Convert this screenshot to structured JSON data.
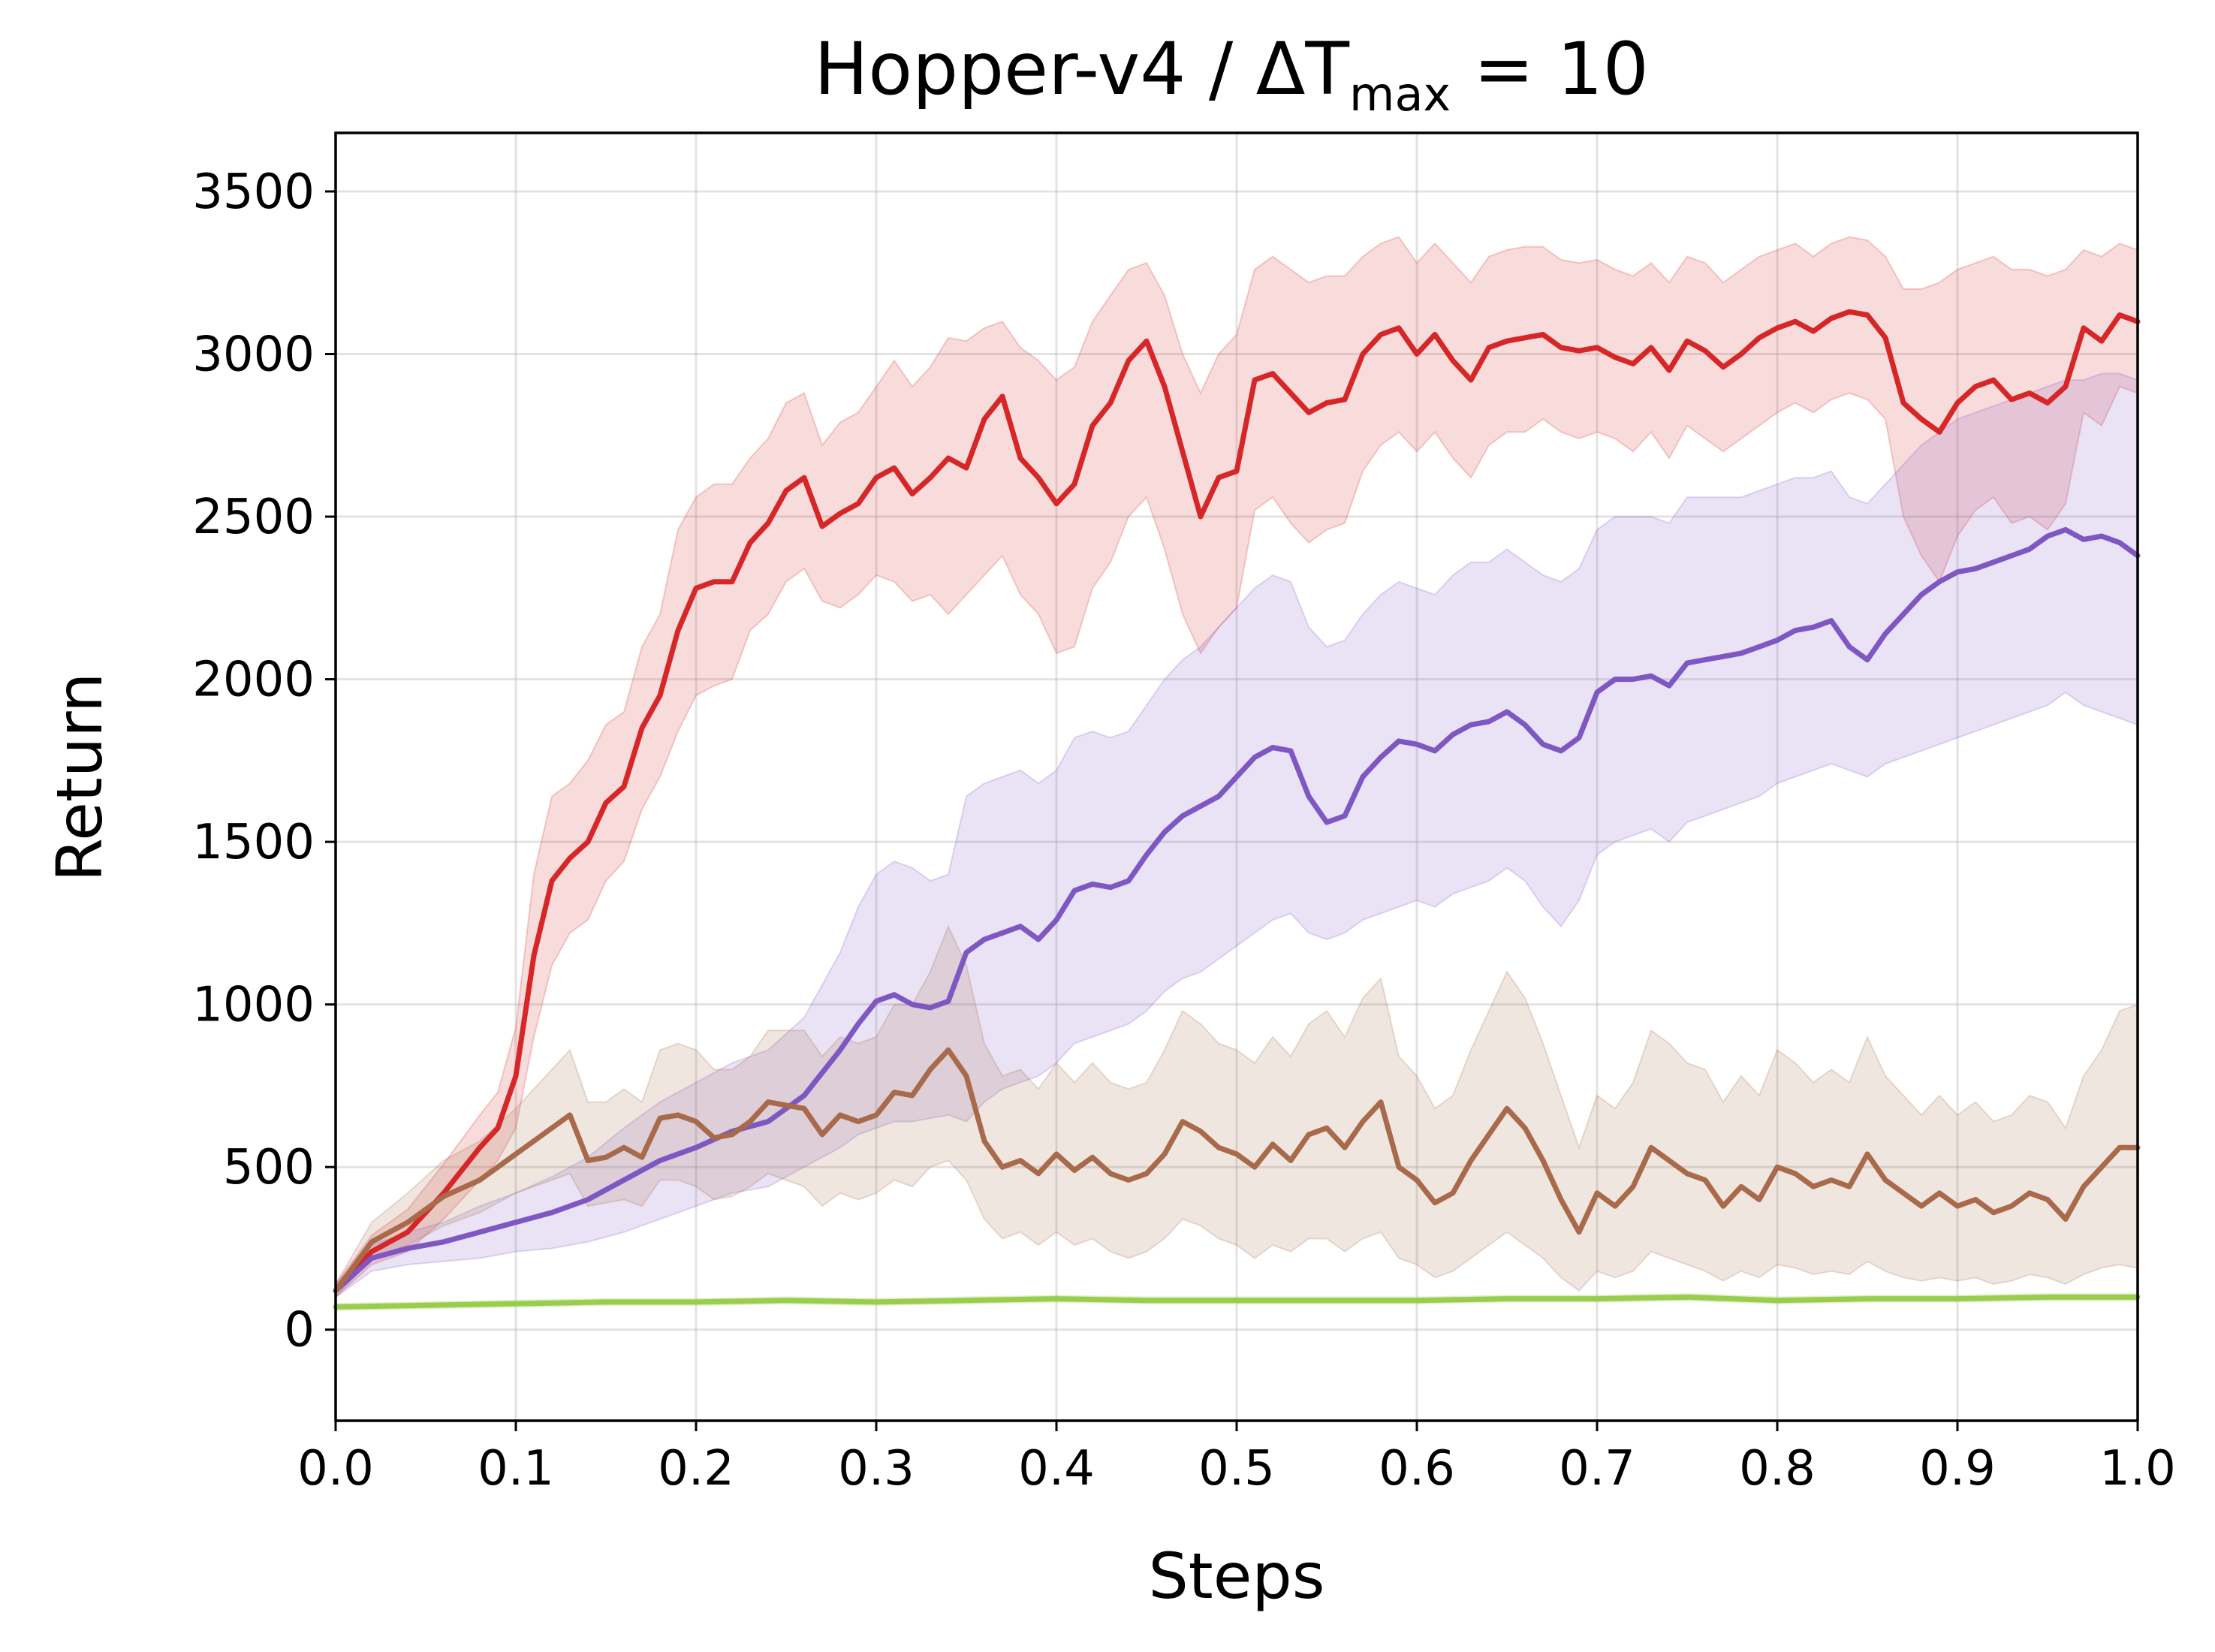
{
  "chart_data": {
    "type": "line",
    "title": "Hopper-v4 / ΔT",
    "title_subscript": "max",
    "title_suffix": " = 10",
    "xlabel": "Steps",
    "ylabel": "Return",
    "xlim": [
      0.0,
      1.0
    ],
    "ylim": [
      -280,
      3680
    ],
    "xticks": [
      "0.0",
      "0.1",
      "0.2",
      "0.3",
      "0.4",
      "0.5",
      "0.6",
      "0.7",
      "0.8",
      "0.9",
      "1.0"
    ],
    "yticks": [
      "0",
      "500",
      "1000",
      "1500",
      "2000",
      "2500",
      "3000",
      "3500"
    ],
    "grid": true,
    "series": [
      {
        "color": "#d62728",
        "x": [
          0.0,
          0.02,
          0.04,
          0.06,
          0.08,
          0.09,
          0.1,
          0.11,
          0.12,
          0.13,
          0.14,
          0.15,
          0.16,
          0.17,
          0.18,
          0.19,
          0.2,
          0.21,
          0.22,
          0.23,
          0.24,
          0.25,
          0.26,
          0.27,
          0.28,
          0.29,
          0.3,
          0.31,
          0.32,
          0.33,
          0.34,
          0.35,
          0.36,
          0.37,
          0.38,
          0.39,
          0.4,
          0.41,
          0.42,
          0.43,
          0.44,
          0.45,
          0.46,
          0.47,
          0.48,
          0.49,
          0.5,
          0.51,
          0.52,
          0.53,
          0.54,
          0.55,
          0.56,
          0.57,
          0.58,
          0.59,
          0.6,
          0.61,
          0.62,
          0.63,
          0.64,
          0.65,
          0.66,
          0.67,
          0.68,
          0.69,
          0.7,
          0.71,
          0.72,
          0.73,
          0.74,
          0.75,
          0.76,
          0.77,
          0.78,
          0.79,
          0.8,
          0.81,
          0.82,
          0.83,
          0.84,
          0.85,
          0.86,
          0.87,
          0.88,
          0.89,
          0.9,
          0.91,
          0.92,
          0.93,
          0.94,
          0.95,
          0.96,
          0.97,
          0.98,
          0.99,
          1.0
        ],
        "y": [
          120,
          240,
          300,
          420,
          560,
          620,
          780,
          1150,
          1380,
          1450,
          1500,
          1620,
          1670,
          1850,
          1950,
          2150,
          2280,
          2300,
          2300,
          2420,
          2480,
          2580,
          2620,
          2470,
          2510,
          2540,
          2620,
          2650,
          2570,
          2620,
          2680,
          2650,
          2800,
          2870,
          2680,
          2620,
          2540,
          2600,
          2780,
          2850,
          2980,
          3040,
          2900,
          2700,
          2500,
          2620,
          2640,
          2920,
          2940,
          2880,
          2820,
          2850,
          2860,
          3000,
          3060,
          3080,
          3000,
          3060,
          2980,
          2920,
          3020,
          3040,
          3050,
          3060,
          3020,
          3010,
          3020,
          2990,
          2970,
          3020,
          2950,
          3040,
          3010,
          2960,
          3000,
          3050,
          3080,
          3100,
          3070,
          3110,
          3130,
          3120,
          3050,
          2850,
          2800,
          2760,
          2850,
          2900,
          2920,
          2860,
          2880,
          2850,
          2900,
          3080,
          3040,
          3120,
          3100
        ],
        "lower": [
          100,
          200,
          240,
          340,
          460,
          520,
          620,
          900,
          1120,
          1220,
          1260,
          1380,
          1440,
          1600,
          1700,
          1840,
          1950,
          1980,
          2000,
          2150,
          2200,
          2300,
          2340,
          2240,
          2220,
          2260,
          2320,
          2300,
          2240,
          2260,
          2200,
          2260,
          2320,
          2380,
          2260,
          2200,
          2080,
          2100,
          2280,
          2360,
          2500,
          2560,
          2400,
          2200,
          2080,
          2160,
          2220,
          2520,
          2560,
          2480,
          2420,
          2460,
          2480,
          2640,
          2720,
          2760,
          2700,
          2760,
          2680,
          2620,
          2720,
          2760,
          2760,
          2800,
          2760,
          2740,
          2760,
          2740,
          2700,
          2760,
          2680,
          2780,
          2740,
          2700,
          2740,
          2780,
          2820,
          2850,
          2820,
          2860,
          2880,
          2860,
          2800,
          2500,
          2380,
          2300,
          2440,
          2520,
          2560,
          2480,
          2500,
          2460,
          2540,
          2820,
          2780,
          2900,
          2880
        ],
        "upper": [
          140,
          290,
          370,
          510,
          660,
          730,
          930,
          1400,
          1640,
          1680,
          1750,
          1860,
          1900,
          2100,
          2200,
          2460,
          2560,
          2600,
          2600,
          2680,
          2740,
          2850,
          2880,
          2720,
          2790,
          2820,
          2900,
          2980,
          2900,
          2960,
          3050,
          3040,
          3080,
          3100,
          3020,
          2980,
          2920,
          2960,
          3100,
          3180,
          3260,
          3280,
          3180,
          3000,
          2880,
          3000,
          3060,
          3260,
          3300,
          3260,
          3220,
          3240,
          3240,
          3300,
          3340,
          3360,
          3280,
          3340,
          3280,
          3220,
          3300,
          3320,
          3330,
          3330,
          3290,
          3280,
          3290,
          3260,
          3240,
          3280,
          3220,
          3300,
          3280,
          3220,
          3260,
          3300,
          3320,
          3340,
          3300,
          3340,
          3360,
          3350,
          3300,
          3200,
          3200,
          3220,
          3260,
          3280,
          3300,
          3260,
          3260,
          3240,
          3260,
          3320,
          3300,
          3340,
          3320
        ]
      },
      {
        "color": "#7e57c2",
        "x": [
          0.0,
          0.02,
          0.04,
          0.06,
          0.08,
          0.1,
          0.12,
          0.14,
          0.16,
          0.18,
          0.2,
          0.22,
          0.24,
          0.26,
          0.28,
          0.29,
          0.3,
          0.31,
          0.32,
          0.33,
          0.34,
          0.35,
          0.36,
          0.37,
          0.38,
          0.39,
          0.4,
          0.41,
          0.42,
          0.43,
          0.44,
          0.45,
          0.46,
          0.47,
          0.48,
          0.49,
          0.5,
          0.51,
          0.52,
          0.53,
          0.54,
          0.55,
          0.56,
          0.57,
          0.58,
          0.59,
          0.6,
          0.61,
          0.62,
          0.63,
          0.64,
          0.65,
          0.66,
          0.67,
          0.68,
          0.69,
          0.7,
          0.71,
          0.72,
          0.73,
          0.74,
          0.75,
          0.76,
          0.77,
          0.78,
          0.79,
          0.8,
          0.81,
          0.82,
          0.83,
          0.84,
          0.85,
          0.86,
          0.87,
          0.88,
          0.89,
          0.9,
          0.91,
          0.92,
          0.93,
          0.94,
          0.95,
          0.96,
          0.97,
          0.98,
          0.99,
          1.0
        ],
        "y": [
          120,
          220,
          250,
          270,
          300,
          330,
          360,
          400,
          460,
          520,
          560,
          610,
          640,
          720,
          860,
          940,
          1010,
          1030,
          1000,
          990,
          1010,
          1160,
          1200,
          1220,
          1240,
          1200,
          1260,
          1350,
          1370,
          1360,
          1380,
          1460,
          1530,
          1580,
          1610,
          1640,
          1700,
          1760,
          1790,
          1780,
          1640,
          1560,
          1580,
          1700,
          1760,
          1810,
          1800,
          1780,
          1830,
          1860,
          1870,
          1900,
          1860,
          1800,
          1780,
          1820,
          1960,
          2000,
          2000,
          2010,
          1980,
          2050,
          2060,
          2070,
          2080,
          2100,
          2120,
          2150,
          2160,
          2180,
          2100,
          2060,
          2140,
          2200,
          2260,
          2300,
          2330,
          2340,
          2360,
          2380,
          2400,
          2440,
          2460,
          2430,
          2440,
          2420,
          2380
        ],
        "lower": [
          100,
          180,
          200,
          210,
          220,
          240,
          250,
          270,
          300,
          340,
          380,
          420,
          440,
          500,
          560,
          600,
          620,
          640,
          640,
          650,
          660,
          640,
          700,
          740,
          760,
          780,
          820,
          880,
          900,
          920,
          940,
          980,
          1040,
          1080,
          1100,
          1140,
          1180,
          1220,
          1260,
          1280,
          1220,
          1200,
          1220,
          1260,
          1280,
          1300,
          1320,
          1300,
          1340,
          1360,
          1380,
          1420,
          1380,
          1300,
          1240,
          1320,
          1460,
          1500,
          1520,
          1540,
          1500,
          1560,
          1580,
          1600,
          1620,
          1640,
          1680,
          1700,
          1720,
          1740,
          1720,
          1700,
          1740,
          1760,
          1780,
          1800,
          1820,
          1840,
          1860,
          1880,
          1900,
          1920,
          1960,
          1920,
          1900,
          1880,
          1860
        ],
        "upper": [
          140,
          260,
          300,
          330,
          380,
          420,
          470,
          530,
          620,
          700,
          760,
          820,
          860,
          960,
          1160,
          1300,
          1400,
          1440,
          1420,
          1380,
          1400,
          1640,
          1680,
          1700,
          1720,
          1680,
          1720,
          1820,
          1840,
          1820,
          1840,
          1920,
          2000,
          2060,
          2100,
          2160,
          2220,
          2280,
          2320,
          2300,
          2160,
          2100,
          2120,
          2200,
          2260,
          2300,
          2280,
          2260,
          2320,
          2360,
          2360,
          2400,
          2360,
          2320,
          2300,
          2340,
          2460,
          2500,
          2500,
          2500,
          2480,
          2560,
          2560,
          2560,
          2560,
          2580,
          2600,
          2620,
          2620,
          2640,
          2560,
          2540,
          2600,
          2660,
          2720,
          2760,
          2800,
          2820,
          2840,
          2860,
          2880,
          2900,
          2920,
          2920,
          2940,
          2940,
          2920
        ]
      },
      {
        "color": "#a86a4a",
        "x": [
          0.0,
          0.02,
          0.04,
          0.06,
          0.08,
          0.1,
          0.12,
          0.13,
          0.14,
          0.15,
          0.16,
          0.17,
          0.18,
          0.19,
          0.2,
          0.21,
          0.22,
          0.23,
          0.24,
          0.25,
          0.26,
          0.27,
          0.28,
          0.29,
          0.3,
          0.31,
          0.32,
          0.33,
          0.34,
          0.35,
          0.36,
          0.37,
          0.38,
          0.39,
          0.4,
          0.41,
          0.42,
          0.43,
          0.44,
          0.45,
          0.46,
          0.47,
          0.48,
          0.49,
          0.5,
          0.51,
          0.52,
          0.53,
          0.54,
          0.55,
          0.56,
          0.57,
          0.58,
          0.59,
          0.6,
          0.61,
          0.62,
          0.63,
          0.64,
          0.65,
          0.66,
          0.67,
          0.68,
          0.69,
          0.7,
          0.71,
          0.72,
          0.73,
          0.74,
          0.75,
          0.76,
          0.77,
          0.78,
          0.79,
          0.8,
          0.81,
          0.82,
          0.83,
          0.84,
          0.85,
          0.86,
          0.87,
          0.88,
          0.89,
          0.9,
          0.91,
          0.92,
          0.93,
          0.94,
          0.95,
          0.96,
          0.97,
          0.98,
          0.99,
          1.0
        ],
        "y": [
          120,
          270,
          330,
          410,
          460,
          540,
          620,
          660,
          520,
          530,
          560,
          530,
          650,
          660,
          640,
          590,
          600,
          640,
          700,
          690,
          680,
          600,
          660,
          640,
          660,
          730,
          720,
          800,
          860,
          780,
          580,
          500,
          520,
          480,
          540,
          490,
          530,
          480,
          460,
          480,
          540,
          640,
          610,
          560,
          540,
          500,
          570,
          520,
          600,
          620,
          560,
          640,
          700,
          500,
          460,
          390,
          420,
          520,
          600,
          680,
          620,
          520,
          400,
          300,
          420,
          380,
          440,
          560,
          520,
          480,
          460,
          380,
          440,
          400,
          500,
          480,
          440,
          460,
          440,
          540,
          460,
          420,
          380,
          420,
          380,
          400,
          360,
          380,
          420,
          400,
          340,
          440,
          500,
          560,
          560
        ],
        "lower": [
          100,
          220,
          260,
          320,
          360,
          420,
          460,
          480,
          380,
          390,
          400,
          380,
          460,
          460,
          440,
          400,
          410,
          440,
          480,
          460,
          440,
          380,
          420,
          400,
          420,
          460,
          440,
          500,
          520,
          460,
          340,
          280,
          300,
          260,
          300,
          260,
          280,
          240,
          220,
          240,
          280,
          340,
          320,
          280,
          260,
          220,
          260,
          240,
          280,
          280,
          240,
          280,
          300,
          220,
          200,
          160,
          180,
          220,
          260,
          300,
          260,
          220,
          160,
          120,
          180,
          160,
          180,
          240,
          220,
          200,
          180,
          150,
          180,
          160,
          200,
          190,
          170,
          180,
          170,
          210,
          180,
          160,
          150,
          160,
          150,
          160,
          140,
          150,
          170,
          160,
          140,
          170,
          190,
          200,
          190
        ],
        "upper": [
          140,
          330,
          420,
          520,
          580,
          680,
          800,
          860,
          700,
          700,
          740,
          700,
          860,
          880,
          860,
          800,
          800,
          840,
          920,
          920,
          920,
          840,
          900,
          880,
          900,
          1000,
          1000,
          1100,
          1240,
          1120,
          880,
          780,
          800,
          740,
          820,
          760,
          820,
          760,
          740,
          760,
          860,
          980,
          940,
          880,
          860,
          820,
          900,
          840,
          940,
          980,
          900,
          1020,
          1080,
          840,
          780,
          680,
          720,
          860,
          980,
          1100,
          1020,
          880,
          720,
          560,
          720,
          680,
          760,
          920,
          880,
          820,
          800,
          700,
          780,
          720,
          860,
          820,
          760,
          800,
          760,
          900,
          780,
          720,
          660,
          720,
          660,
          700,
          640,
          660,
          720,
          700,
          620,
          780,
          860,
          980,
          1000
        ]
      },
      {
        "color": "#9acd4e",
        "x": [
          0.0,
          0.05,
          0.1,
          0.15,
          0.2,
          0.25,
          0.3,
          0.35,
          0.4,
          0.45,
          0.5,
          0.55,
          0.6,
          0.65,
          0.7,
          0.75,
          0.8,
          0.85,
          0.9,
          0.95,
          1.0
        ],
        "y": [
          70,
          75,
          80,
          85,
          85,
          90,
          85,
          90,
          95,
          90,
          90,
          90,
          90,
          95,
          95,
          100,
          90,
          95,
          95,
          100,
          100
        ],
        "lower": [
          60,
          65,
          70,
          75,
          75,
          80,
          75,
          80,
          85,
          80,
          80,
          80,
          80,
          85,
          85,
          90,
          80,
          85,
          85,
          90,
          90
        ],
        "upper": [
          80,
          85,
          90,
          95,
          95,
          100,
          95,
          100,
          105,
          100,
          100,
          100,
          100,
          105,
          105,
          110,
          100,
          105,
          105,
          110,
          110
        ]
      }
    ]
  }
}
